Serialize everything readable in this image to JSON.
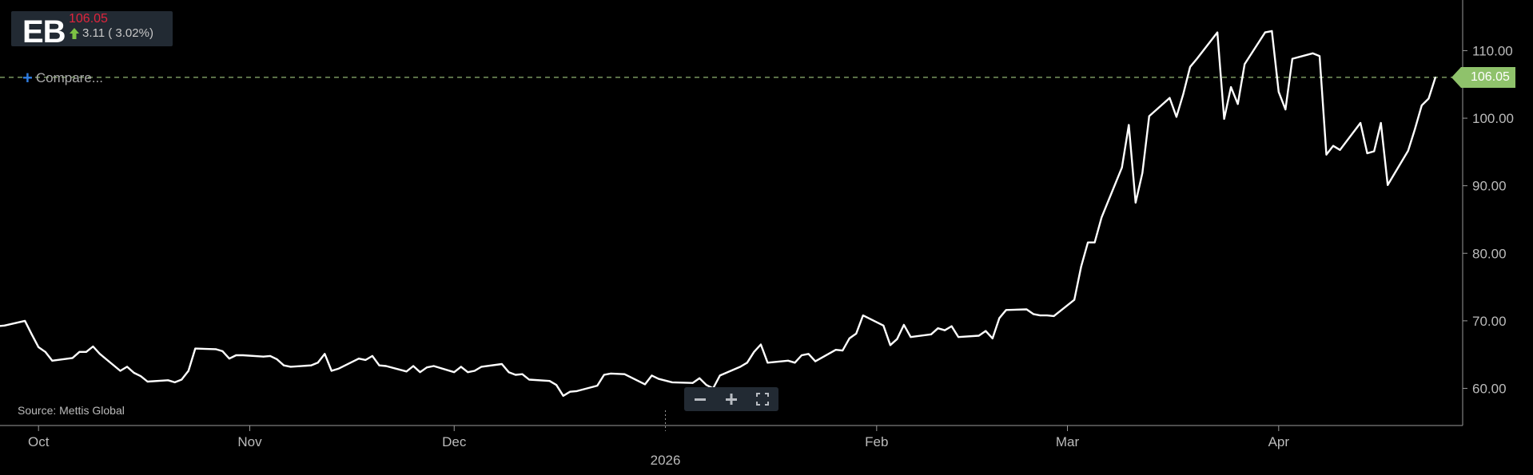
{
  "quote": {
    "symbol": "EB",
    "price": "106.05",
    "change": "3.11 ( 3.02%)",
    "change_direction_icon": "arrow-up-icon",
    "colors": {
      "price": "#e0243c",
      "up": "#7cc244",
      "box": "#222a33"
    }
  },
  "compare": {
    "icon": "plus-icon",
    "label": "Compare..."
  },
  "source": "Source: Mettis Global",
  "zoom_controls": {
    "icons": [
      "minus-icon",
      "plus-icon",
      "fullscreen-icon"
    ]
  },
  "last_price_label": "106.05",
  "chart_data": {
    "type": "line",
    "title": "",
    "xlabel": "",
    "ylabel": "",
    "ylim": [
      54.5,
      117.5
    ],
    "y_ticks": [
      60,
      70,
      80,
      90,
      100,
      110
    ],
    "y_tick_labels": [
      "60.00",
      "70.00",
      "80.00",
      "90.00",
      "100.00",
      "110.00"
    ],
    "x_ticks": [
      {
        "label": "Oct",
        "date": "2025-10-01"
      },
      {
        "label": "Nov",
        "date": "2025-11-01"
      },
      {
        "label": "Dec",
        "date": "2025-12-01"
      },
      {
        "label": "2026",
        "date": "2026-01-01"
      },
      {
        "label": "Feb",
        "date": "2026-02-01"
      },
      {
        "label": "Mar",
        "date": "2026-03-01"
      },
      {
        "label": "Apr",
        "date": "2026-04-01"
      }
    ],
    "x_range": [
      "2025-09-23",
      "2026-04-28"
    ],
    "last_value_line": 106.05,
    "colors": {
      "line": "#ffffff",
      "last_line": "#8fb573",
      "last_tag": "#8fc26b",
      "axis": "#bbbbbb"
    },
    "series": [
      {
        "x": [
          "2025-09-23",
          "2025-09-24",
          "2025-09-25",
          "2025-09-26",
          "2025-09-29",
          "2025-09-30",
          "2025-10-01",
          "2025-10-02",
          "2025-10-03",
          "2025-10-06",
          "2025-10-07",
          "2025-10-08",
          "2025-10-09",
          "2025-10-10",
          "2025-10-13",
          "2025-10-14",
          "2025-10-15",
          "2025-10-16",
          "2025-10-17",
          "2025-10-20",
          "2025-10-21",
          "2025-10-22",
          "2025-10-23",
          "2025-10-24",
          "2025-10-27",
          "2025-10-28",
          "2025-10-29",
          "2025-10-30",
          "2025-10-31",
          "2025-11-03",
          "2025-11-04",
          "2025-11-05",
          "2025-11-06",
          "2025-11-07",
          "2025-11-10",
          "2025-11-11",
          "2025-11-12",
          "2025-11-13",
          "2025-11-14",
          "2025-11-17",
          "2025-11-18",
          "2025-11-19",
          "2025-11-20",
          "2025-11-21",
          "2025-11-24",
          "2025-11-25",
          "2025-11-26",
          "2025-11-27",
          "2025-11-28",
          "2025-12-01",
          "2025-12-02",
          "2025-12-03",
          "2025-12-04",
          "2025-12-05",
          "2025-12-08",
          "2025-12-09",
          "2025-12-10",
          "2025-12-11",
          "2025-12-12",
          "2025-12-15",
          "2025-12-16",
          "2025-12-17",
          "2025-12-18",
          "2025-12-19",
          "2025-12-22",
          "2025-12-23",
          "2025-12-24",
          "2025-12-26",
          "2025-12-29",
          "2025-12-30",
          "2025-12-31",
          "2026-01-02",
          "2026-01-05",
          "2026-01-06",
          "2026-01-07",
          "2026-01-08",
          "2026-01-09",
          "2026-01-12",
          "2026-01-13",
          "2026-01-14",
          "2026-01-15",
          "2026-01-16",
          "2026-01-19",
          "2026-01-20",
          "2026-01-21",
          "2026-01-22",
          "2026-01-23",
          "2026-01-26",
          "2026-01-27",
          "2026-01-28",
          "2026-01-29",
          "2026-01-30",
          "2026-02-02",
          "2026-02-03",
          "2026-02-04",
          "2026-02-05",
          "2026-02-06",
          "2026-02-09",
          "2026-02-10",
          "2026-02-11",
          "2026-02-12",
          "2026-02-13",
          "2026-02-16",
          "2026-02-17",
          "2026-02-18",
          "2026-02-19",
          "2026-02-20",
          "2026-02-23",
          "2026-02-24",
          "2026-02-25",
          "2026-02-26",
          "2026-02-27",
          "2026-03-02",
          "2026-03-03",
          "2026-03-04",
          "2026-03-05",
          "2026-03-06",
          "2026-03-09",
          "2026-03-10",
          "2026-03-11",
          "2026-03-12",
          "2026-03-13",
          "2026-03-16",
          "2026-03-17",
          "2026-03-18",
          "2026-03-19",
          "2026-03-20",
          "2026-03-23",
          "2026-03-24",
          "2026-03-25",
          "2026-03-26",
          "2026-03-27",
          "2026-03-30",
          "2026-03-31",
          "2026-04-01",
          "2026-04-02",
          "2026-04-03",
          "2026-04-06",
          "2026-04-07",
          "2026-04-08",
          "2026-04-09",
          "2026-04-10",
          "2026-04-13",
          "2026-04-14",
          "2026-04-15",
          "2026-04-16",
          "2026-04-17",
          "2026-04-20",
          "2026-04-21",
          "2026-04-22",
          "2026-04-23",
          "2026-04-24"
        ],
        "values": [
          66.6,
          67.6,
          69.2,
          69.3,
          70.0,
          68.0,
          66.1,
          65.4,
          64.1,
          64.5,
          65.4,
          65.4,
          66.2,
          65.1,
          62.6,
          63.2,
          62.3,
          61.8,
          61.0,
          61.2,
          60.9,
          61.3,
          62.6,
          65.9,
          65.8,
          65.5,
          64.4,
          64.9,
          64.9,
          64.7,
          64.8,
          64.3,
          63.4,
          63.2,
          63.4,
          63.8,
          65.1,
          62.6,
          62.9,
          64.4,
          64.2,
          64.8,
          63.4,
          63.3,
          62.5,
          63.3,
          62.4,
          63.1,
          63.3,
          62.4,
          63.2,
          62.4,
          62.6,
          63.2,
          63.6,
          62.4,
          62.0,
          62.1,
          61.3,
          61.1,
          60.5,
          58.9,
          59.5,
          59.6,
          60.4,
          62.0,
          62.2,
          62.1,
          60.6,
          61.9,
          61.4,
          60.9,
          60.8,
          61.5,
          60.5,
          60.0,
          61.9,
          63.2,
          63.8,
          65.4,
          66.5,
          63.8,
          64.1,
          63.8,
          64.9,
          65.1,
          64.0,
          65.7,
          65.6,
          67.4,
          68.1,
          70.8,
          69.3,
          66.4,
          67.3,
          69.4,
          67.6,
          68.0,
          68.9,
          68.6,
          69.2,
          67.6,
          67.8,
          68.5,
          67.4,
          70.4,
          71.6,
          71.7,
          71.0,
          70.8,
          70.8,
          70.7,
          73.1,
          78.0,
          81.6,
          81.6,
          85.3,
          92.7,
          99.0,
          87.5,
          91.9,
          100.3,
          103.0,
          100.2,
          103.6,
          107.6,
          108.8,
          112.7,
          99.9,
          104.6,
          102.1,
          108.0,
          112.7,
          112.9,
          103.9,
          101.3,
          108.8,
          109.6,
          109.2,
          94.6,
          95.9,
          95.3,
          99.3,
          94.8,
          95.1,
          99.3,
          90.1,
          95.2,
          98.4,
          101.9,
          102.9,
          106.05
        ]
      }
    ]
  }
}
